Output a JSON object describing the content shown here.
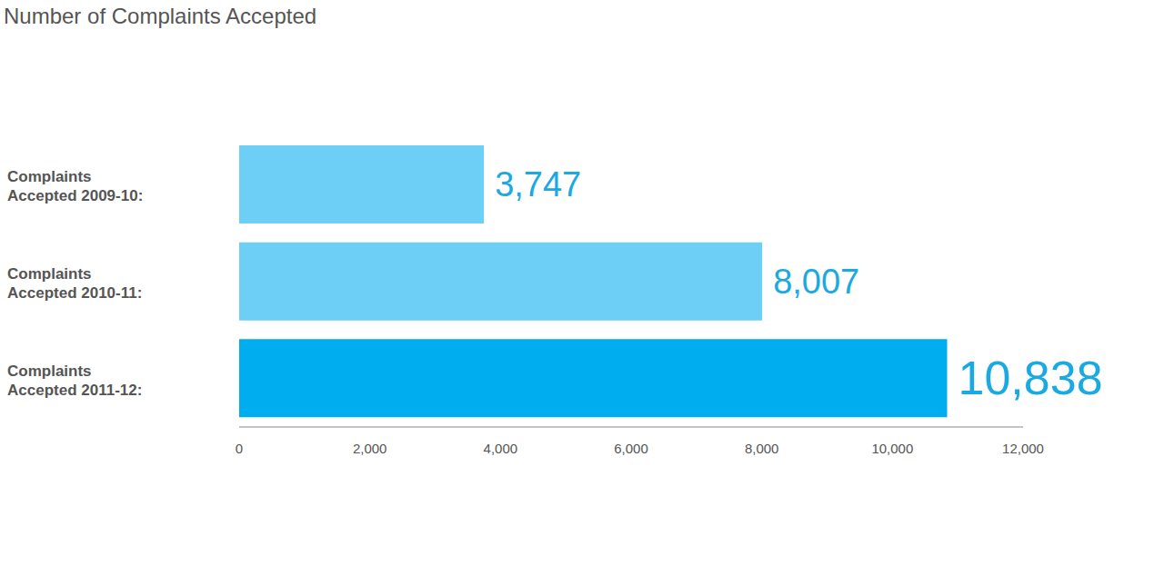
{
  "chart_data": {
    "type": "bar",
    "title": "Number of Complaints Accepted",
    "orientation": "horizontal",
    "categories": [
      "Complaints Accepted 2009-10:",
      "Complaints Accepted 2010-11:",
      "Complaints Accepted 2011-12:"
    ],
    "values": [
      3747,
      8007,
      10838
    ],
    "value_labels": [
      "3,747",
      "8,007",
      "10,838"
    ],
    "colors": [
      "#6dcff6",
      "#6dcff6",
      "#00aeef"
    ],
    "xlim": [
      0,
      12000
    ],
    "xticks": [
      0,
      {
        "value": 2000,
        "label": "2,000"
      },
      {
        "value": 4000,
        "label": "4,000"
      },
      {
        "value": 6000,
        "label": "6,000"
      },
      {
        "value": 8000,
        "label": "8,000"
      },
      {
        "value": 10000,
        "label": "10,000"
      },
      {
        "value": 12000,
        "label": "12,000"
      }
    ],
    "data_labels": true,
    "grid": false
  }
}
